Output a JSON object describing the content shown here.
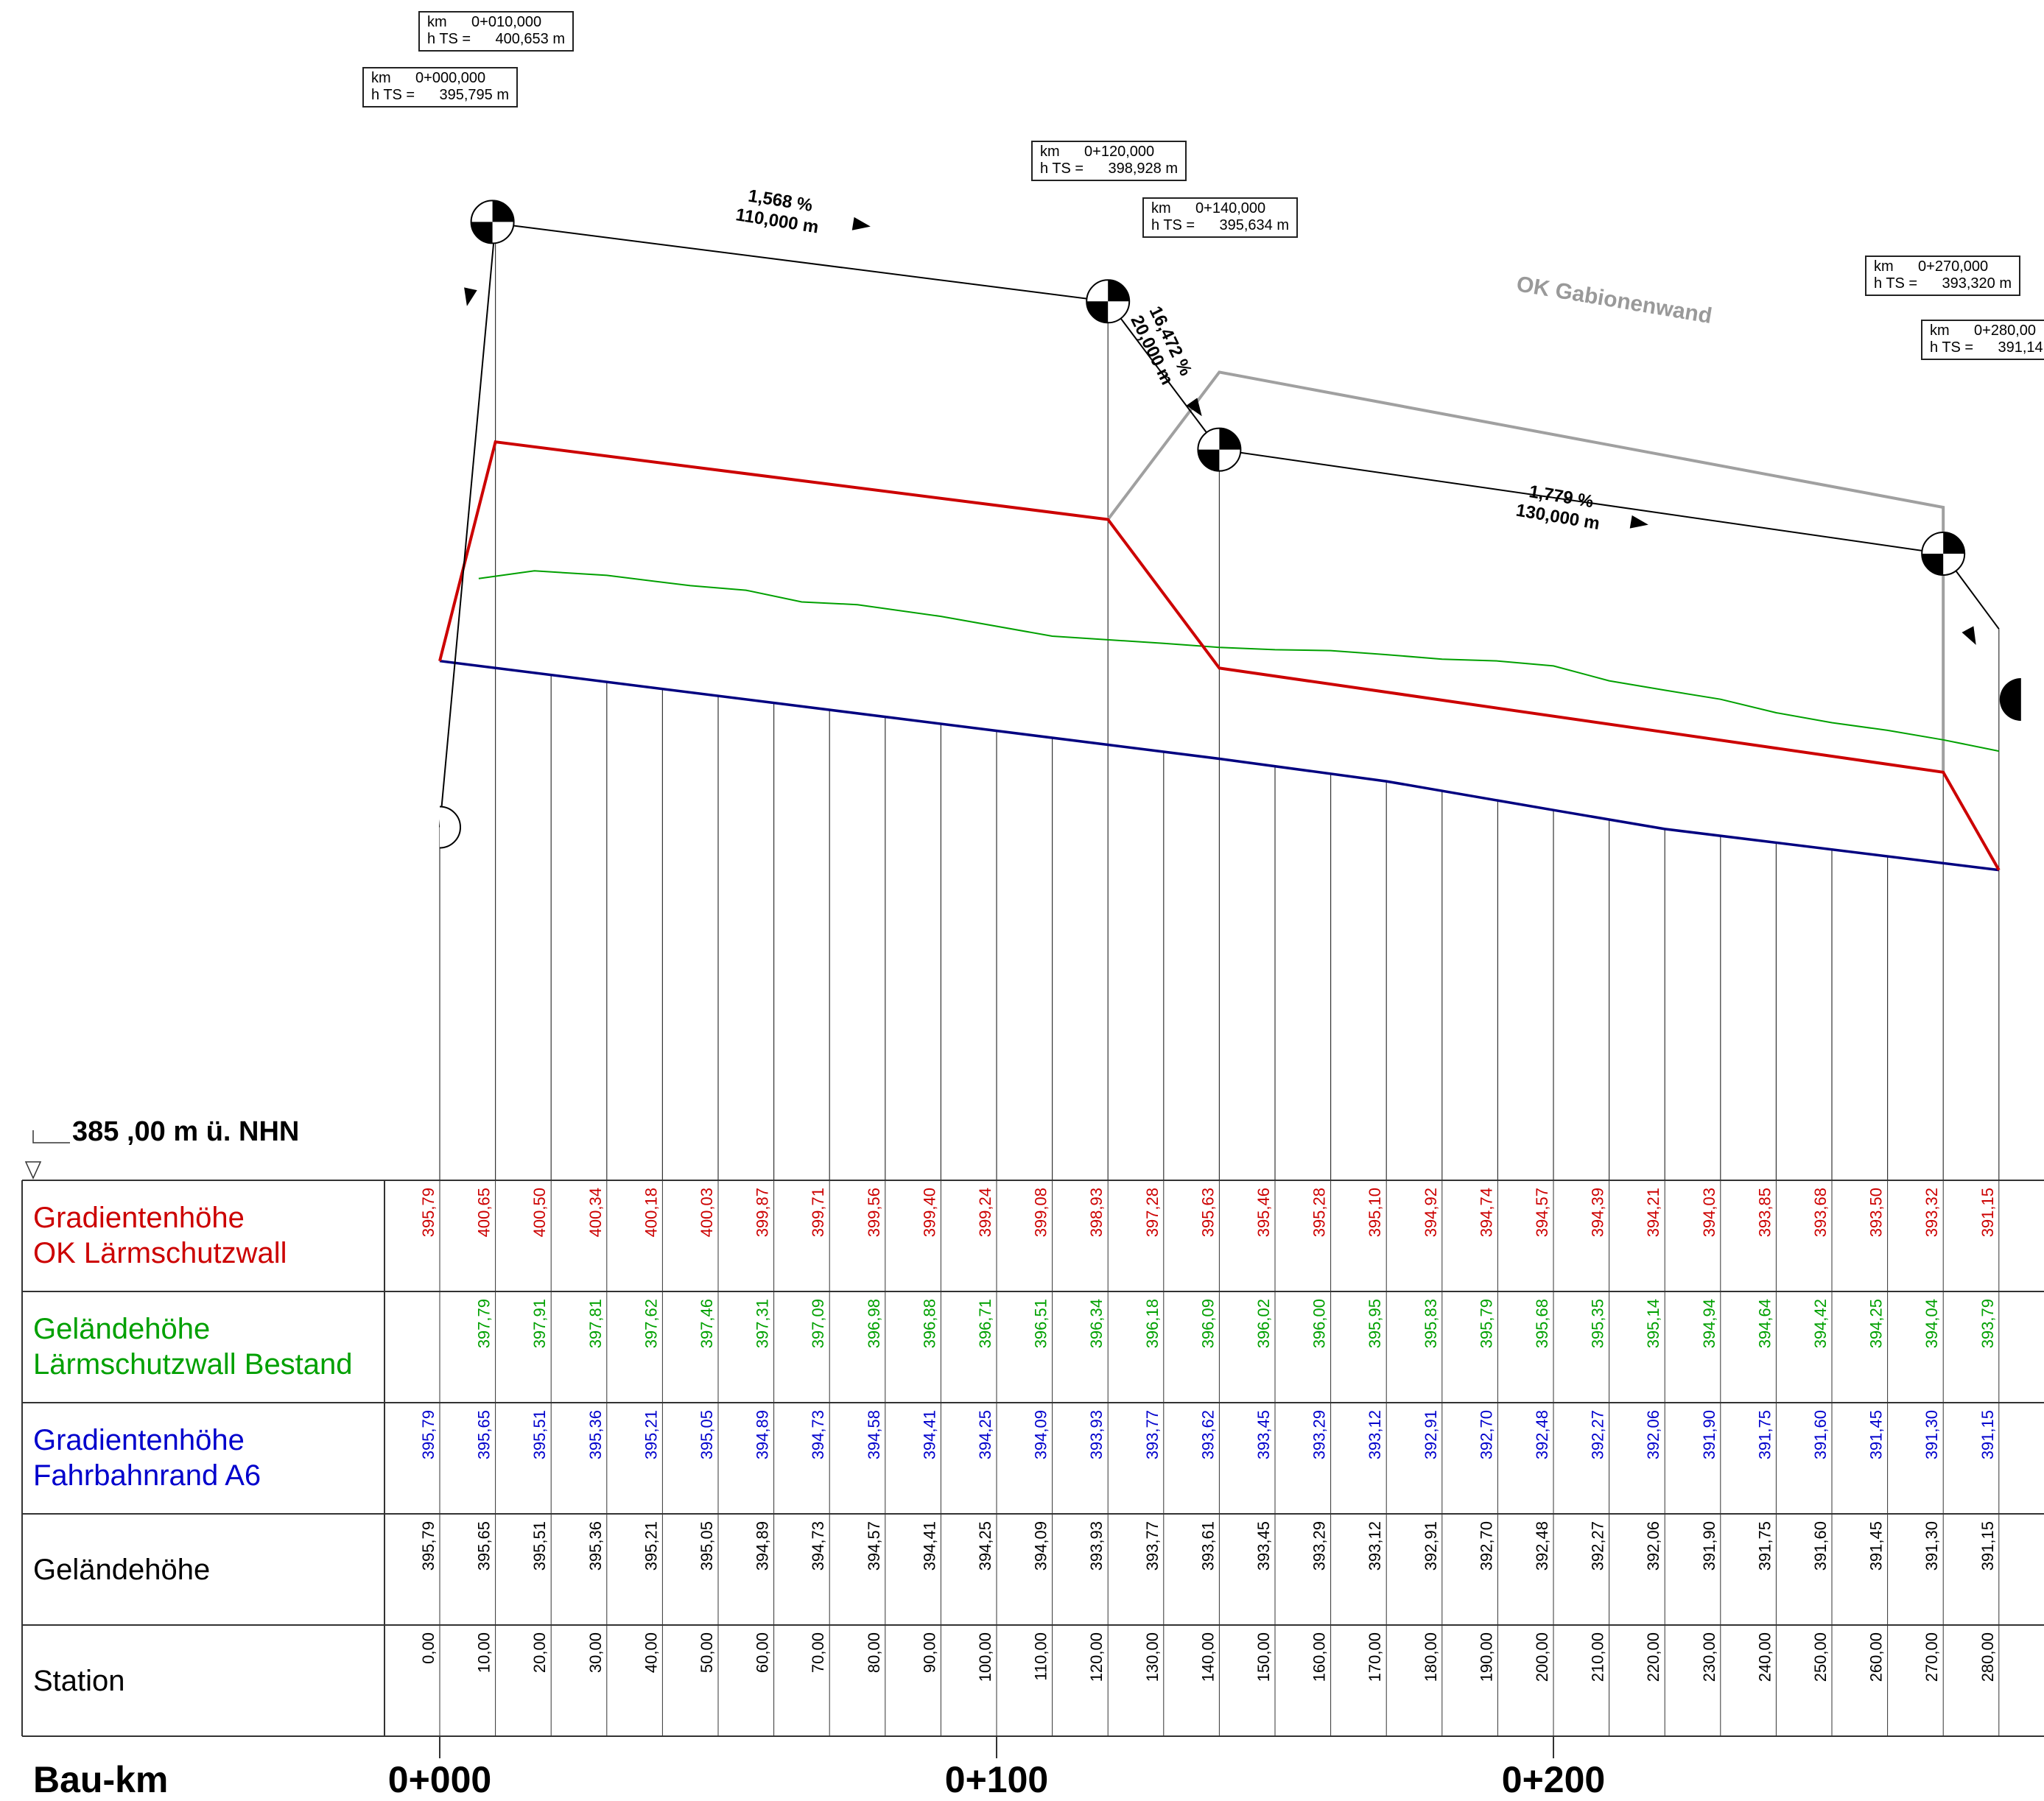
{
  "reference_level": "385 ,00 m ü. NHN",
  "bau_km_label": "Bau-km",
  "km_major": [
    "0+000",
    "0+100",
    "0+200"
  ],
  "bands": {
    "red": {
      "line1": "Gradientenhöhe",
      "line2": "OK Lärmschutzwall",
      "color": "#cc0000",
      "values": [
        "395,79",
        "400,65",
        "400,50",
        "400,34",
        "400,18",
        "400,03",
        "399,87",
        "399,71",
        "399,56",
        "399,40",
        "399,24",
        "399,08",
        "398,93",
        "397,28",
        "395,63",
        "395,46",
        "395,28",
        "395,10",
        "394,92",
        "394,74",
        "394,57",
        "394,39",
        "394,21",
        "394,03",
        "393,85",
        "393,68",
        "393,50",
        "393,32",
        "391,15"
      ]
    },
    "green": {
      "line1": "Geländehöhe",
      "line2": "Lärmschutzwall Bestand",
      "color": "#00a000",
      "values": [
        "",
        "397,79",
        "397,91",
        "397,81",
        "397,62",
        "397,46",
        "397,31",
        "397,09",
        "396,98",
        "396,88",
        "396,71",
        "396,51",
        "396,34",
        "396,18",
        "396,09",
        "396,02",
        "396,00",
        "395,95",
        "395,83",
        "395,79",
        "395,68",
        "395,35",
        "395,14",
        "394,94",
        "394,64",
        "394,42",
        "394,25",
        "394,04",
        "393,79"
      ]
    },
    "blue": {
      "line1": "Gradientenhöhe",
      "line2": "Fahrbahnrand A6",
      "color": "#0000cc",
      "values": [
        "395,79",
        "395,65",
        "395,51",
        "395,36",
        "395,21",
        "395,05",
        "394,89",
        "394,73",
        "394,58",
        "394,41",
        "394,25",
        "394,09",
        "393,93",
        "393,77",
        "393,62",
        "393,45",
        "393,29",
        "393,12",
        "392,91",
        "392,70",
        "392,48",
        "392,27",
        "392,06",
        "391,90",
        "391,75",
        "391,60",
        "391,45",
        "391,30",
        "391,15"
      ]
    },
    "black": {
      "line1": "Geländehöhe",
      "color": "#000000",
      "values": [
        "395,79",
        "395,65",
        "395,51",
        "395,36",
        "395,21",
        "395,05",
        "394,89",
        "394,73",
        "394,57",
        "394,41",
        "394,25",
        "394,09",
        "393,93",
        "393,77",
        "393,61",
        "393,45",
        "393,29",
        "393,12",
        "392,91",
        "392,70",
        "392,48",
        "392,27",
        "392,06",
        "391,90",
        "391,75",
        "391,60",
        "391,45",
        "391,30",
        "391,15"
      ]
    },
    "station": {
      "line1": "Station",
      "values": [
        "0,00",
        "10,00",
        "20,00",
        "30,00",
        "40,00",
        "50,00",
        "60,00",
        "70,00",
        "80,00",
        "90,00",
        "100,00",
        "110,00",
        "120,00",
        "130,00",
        "140,00",
        "150,00",
        "160,00",
        "170,00",
        "180,00",
        "190,00",
        "200,00",
        "210,00",
        "220,00",
        "230,00",
        "240,00",
        "250,00",
        "260,00",
        "270,00",
        "280,00"
      ]
    }
  },
  "stations_m": [
    0,
    10,
    20,
    30,
    40,
    50,
    60,
    70,
    80,
    90,
    100,
    110,
    120,
    130,
    140,
    150,
    160,
    170,
    180,
    190,
    200,
    210,
    220,
    230,
    240,
    250,
    260,
    270,
    280
  ],
  "profile_lines": {
    "gradient_ok_laermschutzwall": {
      "color": "#cc0000",
      "points": [
        [
          0,
          395.79
        ],
        [
          10,
          400.65
        ],
        [
          120,
          398.93
        ],
        [
          140,
          395.63
        ],
        [
          270,
          393.32
        ],
        [
          280,
          391.15
        ]
      ]
    },
    "gelaende_bestand": {
      "color": "#00a000",
      "points": [
        [
          7,
          397.62
        ],
        [
          17,
          397.79
        ],
        [
          30,
          397.69
        ],
        [
          45,
          397.46
        ],
        [
          55,
          397.36
        ],
        [
          65,
          397.1
        ],
        [
          75,
          397.04
        ],
        [
          90,
          396.78
        ],
        [
          110,
          396.34
        ],
        [
          130,
          396.18
        ],
        [
          140,
          396.09
        ],
        [
          150,
          396.04
        ],
        [
          160,
          396.02
        ],
        [
          170,
          395.93
        ],
        [
          180,
          395.83
        ],
        [
          190,
          395.79
        ],
        [
          200,
          395.68
        ],
        [
          210,
          395.35
        ],
        [
          220,
          395.14
        ],
        [
          230,
          394.94
        ],
        [
          240,
          394.64
        ],
        [
          250,
          394.42
        ],
        [
          260,
          394.25
        ],
        [
          270,
          394.04
        ],
        [
          280,
          393.79
        ]
      ]
    },
    "gradient_fahrbahnrand_a6": {
      "color": "#000080",
      "points": [
        [
          0,
          395.79
        ],
        [
          120,
          393.93
        ],
        [
          140,
          393.62
        ],
        [
          170,
          393.12
        ],
        [
          200,
          392.48
        ],
        [
          220,
          392.06
        ],
        [
          280,
          391.15
        ]
      ]
    },
    "ok_gabionenwand": {
      "color": "#a0a0a0",
      "label": "OK Gabionenwand",
      "points": [
        [
          120,
          398.93
        ],
        [
          140,
          402.2
        ],
        [
          270,
          399.2
        ],
        [
          270,
          393.32
        ]
      ]
    }
  },
  "tangent": {
    "points": [
      [
        10,
        405.5
      ],
      [
        120,
        403.77
      ],
      [
        140,
        400.48
      ],
      [
        270,
        398.17
      ],
      [
        280,
        396.5
      ]
    ],
    "segments": [
      {
        "grade": "1,568 %",
        "length": "110,000 m"
      },
      {
        "grade": "16,472 %",
        "length": "20,000 m"
      },
      {
        "grade": "1,779 %",
        "length": "130,000 m"
      }
    ]
  },
  "info_boxes": [
    {
      "km_label": "km",
      "km": "0+010,000",
      "h_label": "h TS =",
      "h": "400,653 m"
    },
    {
      "km_label": "km",
      "km": "0+000,000",
      "h_label": "h TS =",
      "h": "395,795 m"
    },
    {
      "km_label": "km",
      "km": "0+120,000",
      "h_label": "h TS =",
      "h": "398,928 m"
    },
    {
      "km_label": "km",
      "km": "0+140,000",
      "h_label": "h TS =",
      "h": "395,634 m"
    },
    {
      "km_label": "km",
      "km": "0+270,000",
      "h_label": "h TS =",
      "h": "393,320 m"
    },
    {
      "km_label": "km",
      "km": "0+280,00",
      "h_label": "h TS =",
      "h": "391,14"
    }
  ]
}
